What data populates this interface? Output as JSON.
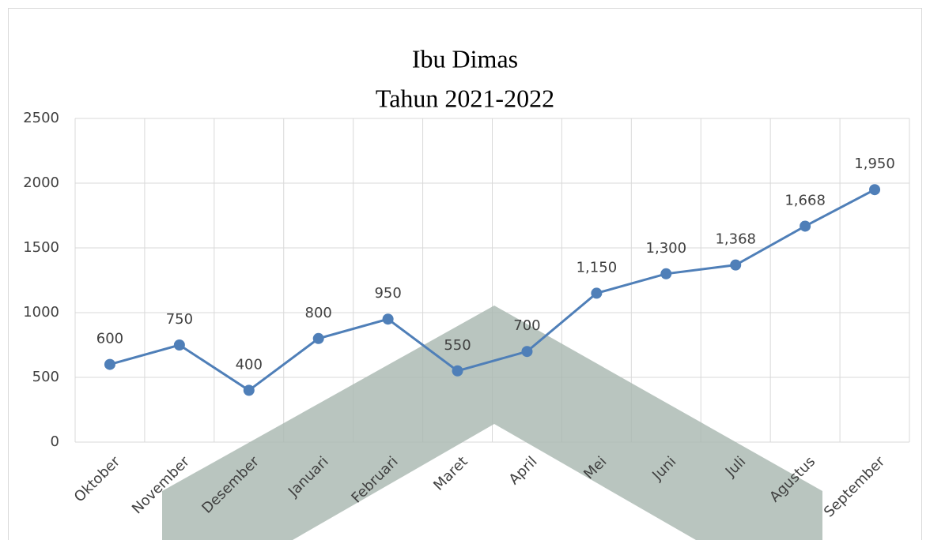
{
  "chart_data": {
    "type": "line",
    "title": [
      "Ibu Dimas",
      "Tahun 2021-2022"
    ],
    "categories": [
      "Oktober",
      "November",
      "Desember",
      "Januari",
      "Februari",
      "Maret",
      "April",
      "Mei",
      "Juni",
      "Juli",
      "Agustus",
      "September"
    ],
    "series": [
      {
        "name": "Ibu Dimas",
        "color": "#4f7fb8",
        "values": [
          600,
          750,
          400,
          800,
          950,
          550,
          700,
          1150,
          1300,
          1368,
          1668,
          1950
        ],
        "value_labels": [
          "600",
          "750",
          "400",
          "800",
          "950",
          "550",
          "700",
          "1,150",
          "1,300",
          "1,368",
          "1,668",
          "1,950"
        ]
      }
    ],
    "ylim": [
      0,
      2500
    ],
    "yticks": [
      0,
      500,
      1000,
      1500,
      2000,
      2500
    ],
    "grid": true
  }
}
